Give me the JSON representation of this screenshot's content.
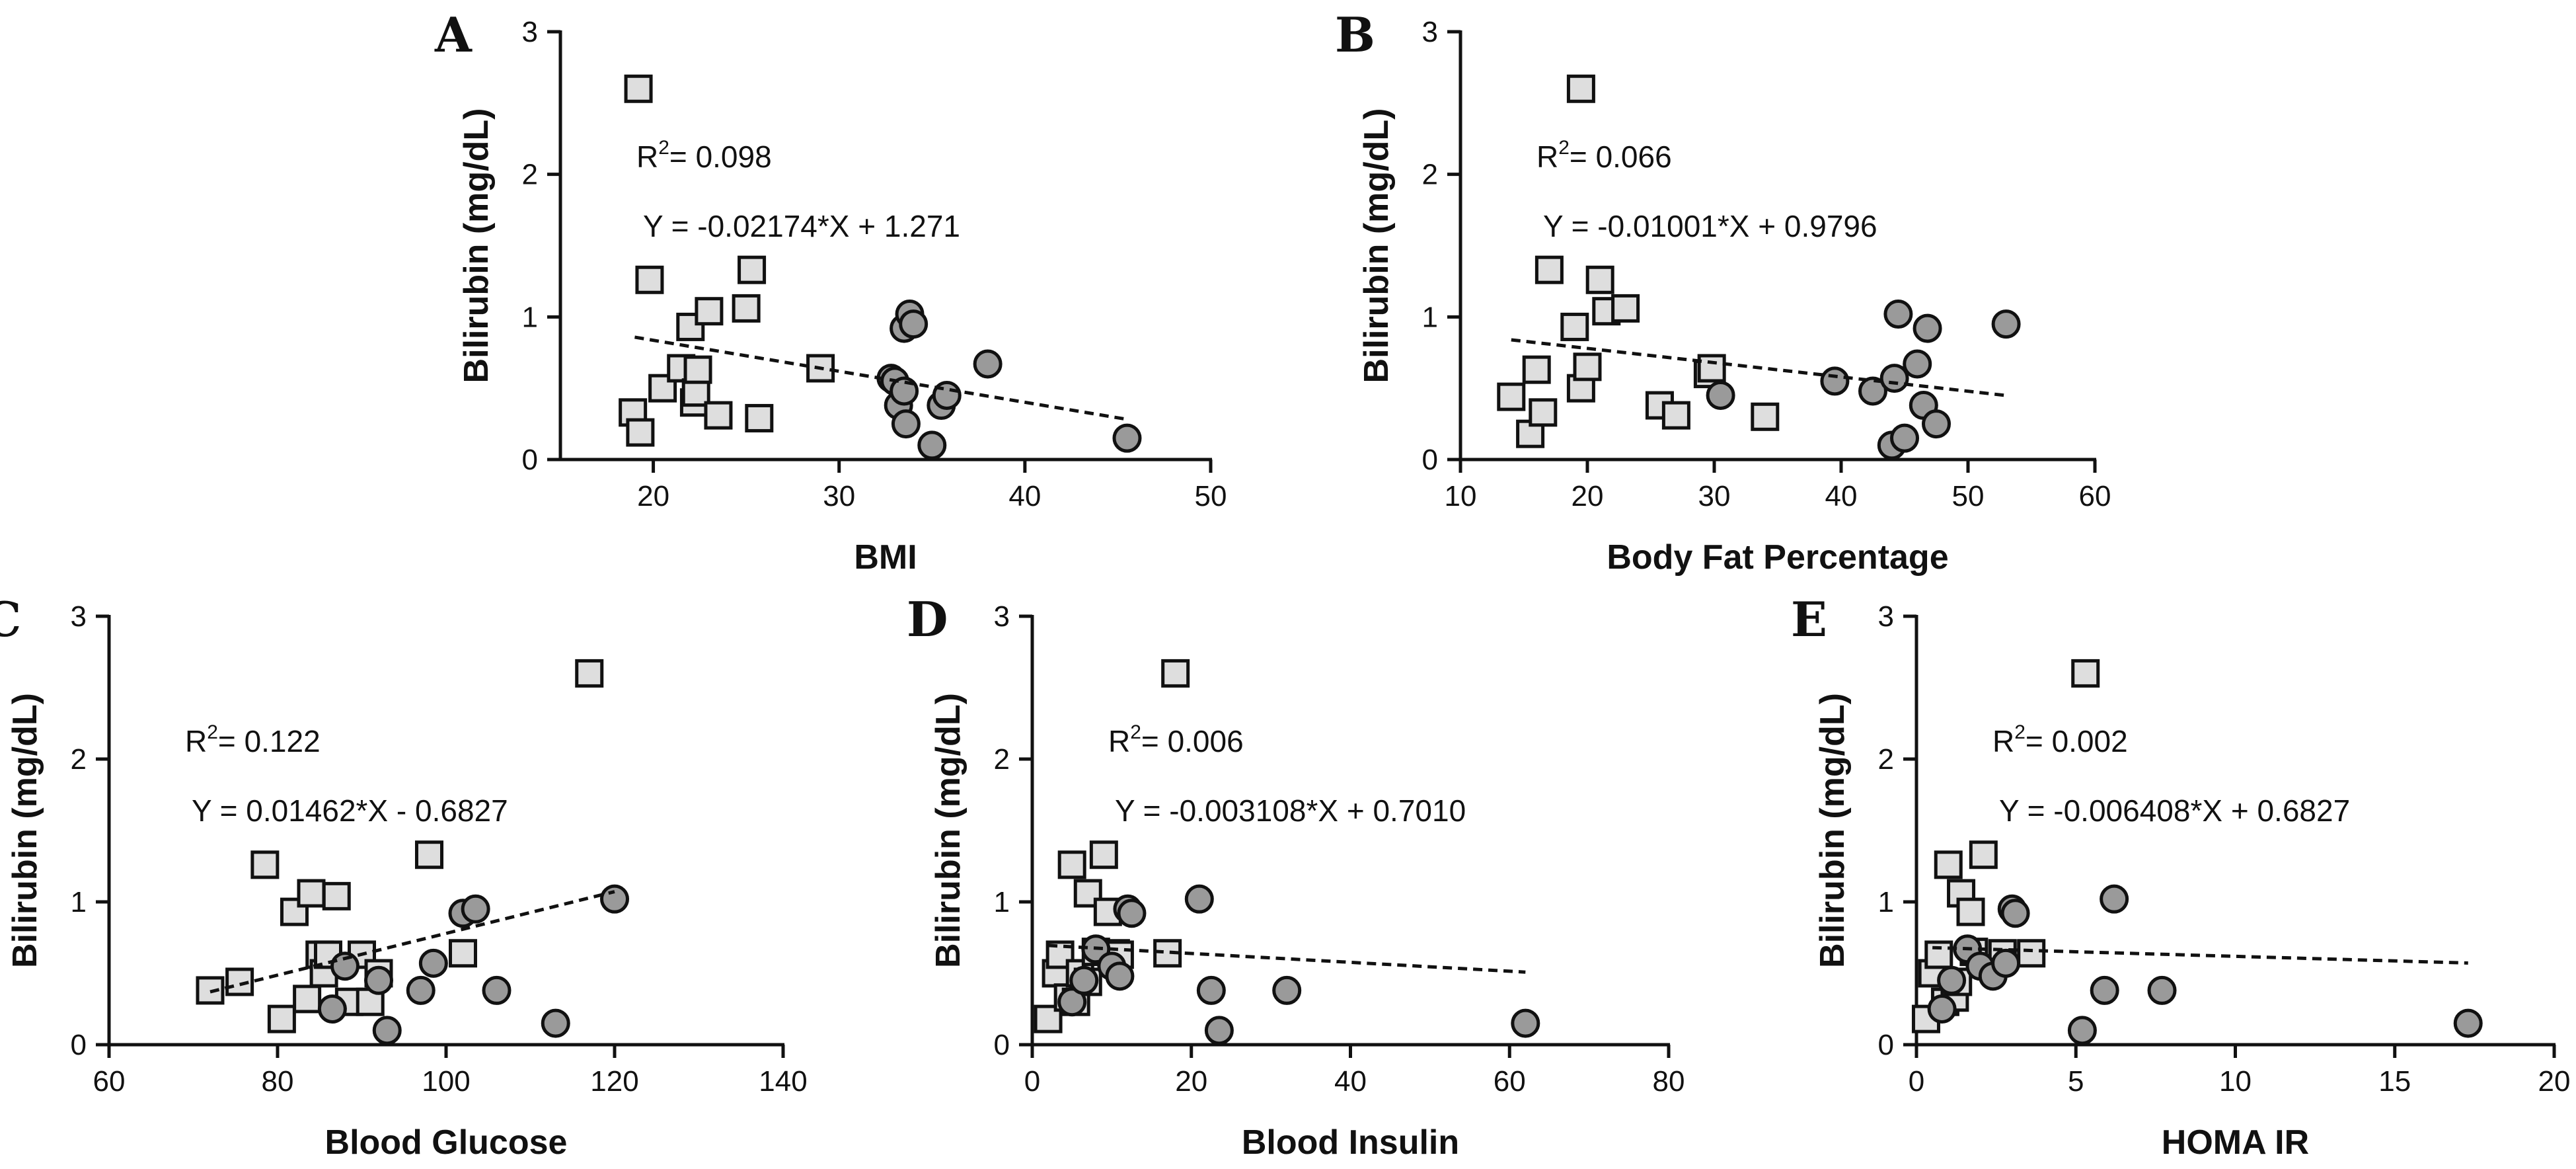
{
  "figure": {
    "colors": {
      "square_fill": "#dedede",
      "circle_fill": "#9a9a9a",
      "ink": "#111111"
    }
  },
  "chart_data": [
    {
      "panel": "A",
      "type": "scatter",
      "xlabel": "BMI",
      "ylabel": "Bilirubin (mg/dL)",
      "xlim": [
        15,
        50
      ],
      "ylim": [
        0,
        3
      ],
      "xticks": [
        20,
        30,
        40,
        50
      ],
      "yticks": [
        0,
        1,
        2,
        3
      ],
      "r2_label": "R",
      "r2_sup": "2",
      "r2_value": "= 0.098",
      "equation": "Y = -0.02174*X + 1.271",
      "fit": {
        "slope": -0.02174,
        "intercept": 1.271,
        "x_range": [
          19,
          45.5
        ]
      },
      "series": [
        {
          "name": "squares",
          "marker": "square",
          "x": [
            19.2,
            19.8,
            18.9,
            19.3,
            20.5,
            21.5,
            22,
            22.2,
            22.3,
            22.4,
            23,
            23.5,
            25,
            25.3,
            25.7,
            29
          ],
          "y": [
            2.6,
            1.26,
            0.33,
            0.19,
            0.5,
            0.64,
            0.93,
            0.4,
            0.47,
            0.63,
            1.04,
            0.31,
            1.06,
            1.33,
            0.29,
            0.64
          ]
        },
        {
          "name": "circles",
          "marker": "circle",
          "x": [
            32.8,
            33,
            33.2,
            33.5,
            33.5,
            33.8,
            34,
            33.6,
            35,
            35.5,
            35.8,
            38,
            45.5
          ],
          "y": [
            0.57,
            0.55,
            0.38,
            0.48,
            0.92,
            1.02,
            0.95,
            0.25,
            0.1,
            0.38,
            0.45,
            0.67,
            0.15
          ]
        }
      ]
    },
    {
      "panel": "B",
      "type": "scatter",
      "xlabel": "Body Fat Percentage",
      "ylabel": "Bilirubin (mg/dL)",
      "xlim": [
        10,
        60
      ],
      "ylim": [
        0,
        3
      ],
      "xticks": [
        10,
        20,
        30,
        40,
        50,
        60
      ],
      "yticks": [
        0,
        1,
        2,
        3
      ],
      "r2_label": "R",
      "r2_sup": "2",
      "r2_value": "= 0.066",
      "equation": "Y = -0.01001*X + 0.9796",
      "fit": {
        "slope": -0.01001,
        "intercept": 0.9796,
        "x_range": [
          14,
          53
        ]
      },
      "series": [
        {
          "name": "squares",
          "marker": "square",
          "x": [
            19.5,
            17,
            14,
            15.5,
            16,
            16.5,
            19,
            19.5,
            20,
            21,
            21.5,
            23,
            25.7,
            27,
            29.5,
            29.8,
            34
          ],
          "y": [
            2.6,
            1.33,
            0.44,
            0.18,
            0.63,
            0.33,
            0.93,
            0.5,
            0.65,
            1.26,
            1.04,
            1.06,
            0.38,
            0.31,
            0.6,
            0.64,
            0.3
          ]
        },
        {
          "name": "circles",
          "marker": "circle",
          "x": [
            30.5,
            39.5,
            42.5,
            44,
            44.5,
            44.2,
            45,
            46,
            46.5,
            46.8,
            47.5,
            53
          ],
          "y": [
            0.45,
            0.55,
            0.48,
            0.1,
            1.02,
            0.57,
            0.15,
            0.67,
            0.38,
            0.92,
            0.25,
            0.95
          ]
        }
      ]
    },
    {
      "panel": "C",
      "type": "scatter",
      "xlabel": "Blood Glucose",
      "ylabel": "Bilirubin (mg/dL)",
      "xlim": [
        60,
        140
      ],
      "ylim": [
        0,
        3
      ],
      "xticks": [
        60,
        80,
        100,
        120,
        140
      ],
      "yticks": [
        0,
        1,
        2,
        3
      ],
      "r2_label": "R",
      "r2_sup": "2",
      "r2_value": "= 0.122",
      "equation": "Y = 0.01462*X - 0.6827",
      "fit": {
        "slope": 0.01462,
        "intercept": -0.6827,
        "x_range": [
          72,
          120
        ]
      },
      "series": [
        {
          "name": "squares",
          "marker": "square",
          "x": [
            117,
            78.5,
            82,
            84,
            87,
            98,
            72,
            75.5,
            80.5,
            83.5,
            85,
            85.5,
            86,
            88.5,
            90,
            91,
            92,
            102
          ],
          "y": [
            2.6,
            1.26,
            0.93,
            1.06,
            1.04,
            1.33,
            0.38,
            0.44,
            0.18,
            0.32,
            0.63,
            0.5,
            0.63,
            0.3,
            0.63,
            0.3,
            0.5,
            0.64
          ]
        },
        {
          "name": "circles",
          "marker": "circle",
          "x": [
            86.5,
            88,
            92,
            93,
            97,
            98.5,
            102,
            103.5,
            106,
            113,
            120
          ],
          "y": [
            0.25,
            0.55,
            0.45,
            0.1,
            0.38,
            0.57,
            0.92,
            0.95,
            0.38,
            0.15,
            1.02
          ]
        }
      ]
    },
    {
      "panel": "D",
      "type": "scatter",
      "xlabel": "Blood Insulin",
      "ylabel": "Bilirubin (mg/dL)",
      "xlim": [
        0,
        80
      ],
      "ylim": [
        0,
        3
      ],
      "xticks": [
        0,
        20,
        40,
        60,
        80
      ],
      "yticks": [
        0,
        1,
        2,
        3
      ],
      "r2_label": "R",
      "r2_sup": "2",
      "r2_value": "= 0.006",
      "equation": "Y = -0.003108*X + 0.7010",
      "fit": {
        "slope": -0.003108,
        "intercept": 0.701,
        "x_range": [
          2,
          62
        ]
      },
      "series": [
        {
          "name": "squares",
          "marker": "square",
          "x": [
            18,
            5,
            7,
            9,
            9.5,
            2,
            3,
            3.5,
            4.5,
            5.5,
            6,
            7,
            8,
            10.5,
            11,
            17
          ],
          "y": [
            2.6,
            1.26,
            1.06,
            1.33,
            0.93,
            0.18,
            0.5,
            0.63,
            0.33,
            0.3,
            0.5,
            0.44,
            0.65,
            0.64,
            0.63,
            0.64
          ]
        },
        {
          "name": "circles",
          "marker": "circle",
          "x": [
            5,
            6.5,
            8,
            10,
            11,
            12,
            12.5,
            21,
            22.5,
            23.5,
            32,
            62
          ],
          "y": [
            0.3,
            0.45,
            0.67,
            0.55,
            0.48,
            0.95,
            0.92,
            1.02,
            0.38,
            0.1,
            0.38,
            0.15
          ]
        }
      ]
    },
    {
      "panel": "E",
      "type": "scatter",
      "xlabel": "HOMA IR",
      "ylabel": "Bilirubin (mg/dL)",
      "xlim": [
        0,
        20
      ],
      "ylim": [
        0,
        3
      ],
      "xticks": [
        0,
        5,
        10,
        15,
        20
      ],
      "yticks": [
        0,
        1,
        2,
        3
      ],
      "r2_label": "R",
      "r2_sup": "2",
      "r2_value": "= 0.002",
      "equation": "Y = -0.006408*X + 0.6827",
      "fit": {
        "slope": -0.006408,
        "intercept": 0.6827,
        "x_range": [
          0.5,
          17.3
        ]
      },
      "series": [
        {
          "name": "squares",
          "marker": "square",
          "x": [
            5.3,
            1,
            1.4,
            2.1,
            1.7,
            0.3,
            0.5,
            0.7,
            0.9,
            1.2,
            1.3,
            1.8,
            2.7,
            3.6
          ],
          "y": [
            2.6,
            1.26,
            1.06,
            1.33,
            0.93,
            0.18,
            0.5,
            0.63,
            0.3,
            0.33,
            0.44,
            0.65,
            0.64,
            0.64
          ]
        },
        {
          "name": "circles",
          "marker": "circle",
          "x": [
            0.8,
            1.1,
            1.6,
            2.0,
            2.4,
            2.8,
            3.0,
            3.1,
            5.2,
            5.9,
            6.2,
            7.7,
            17.3
          ],
          "y": [
            0.25,
            0.45,
            0.67,
            0.55,
            0.48,
            0.57,
            0.95,
            0.92,
            0.1,
            0.38,
            1.02,
            0.38,
            0.15
          ]
        }
      ]
    }
  ]
}
